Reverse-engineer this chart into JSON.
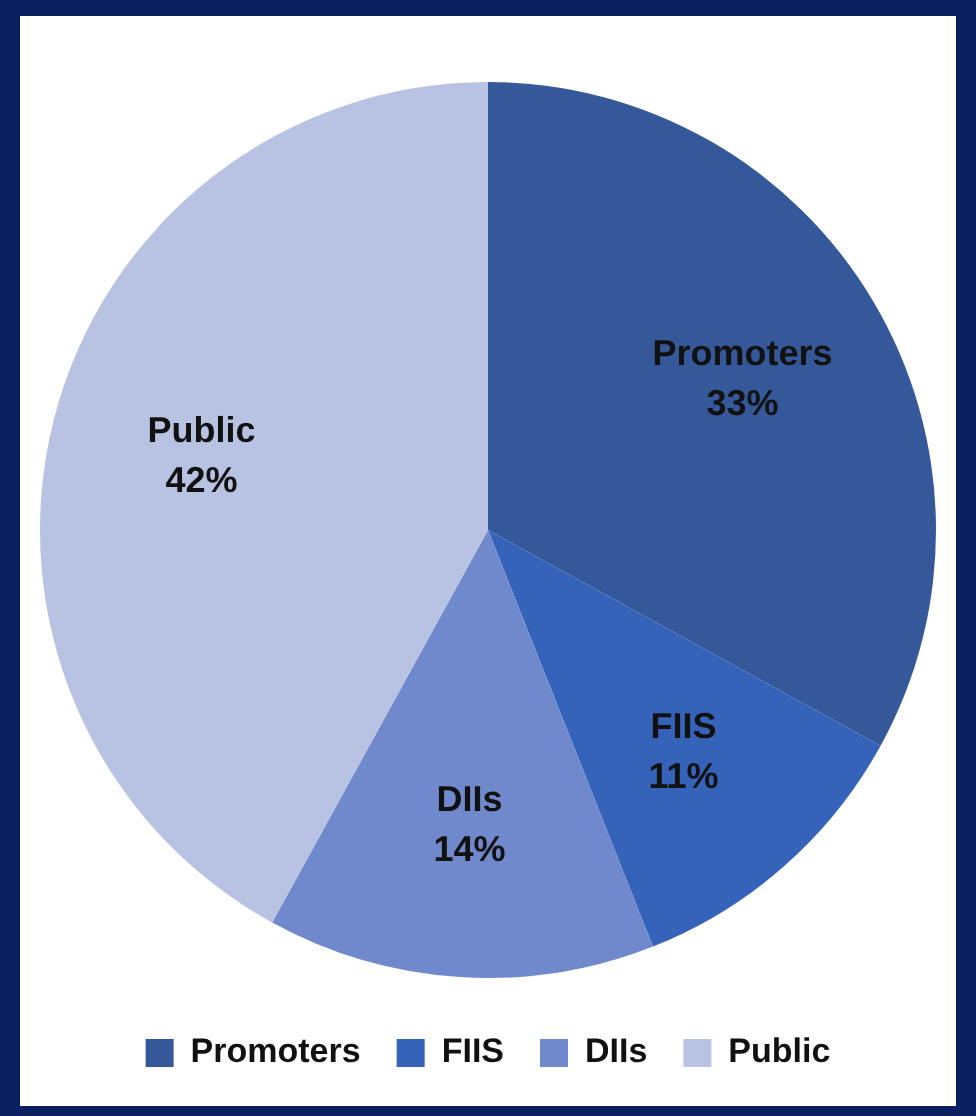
{
  "chart_data": {
    "type": "pie",
    "categories": [
      "Promoters",
      "FIIS",
      "DIIs",
      "Public"
    ],
    "values": [
      33,
      11,
      14,
      42
    ],
    "colors": [
      "#34589a",
      "#3563b9",
      "#7088cc",
      "#b8c3e3"
    ],
    "value_labels": [
      "33%",
      "11%",
      "14%",
      "42%"
    ],
    "legend": "bottom"
  }
}
